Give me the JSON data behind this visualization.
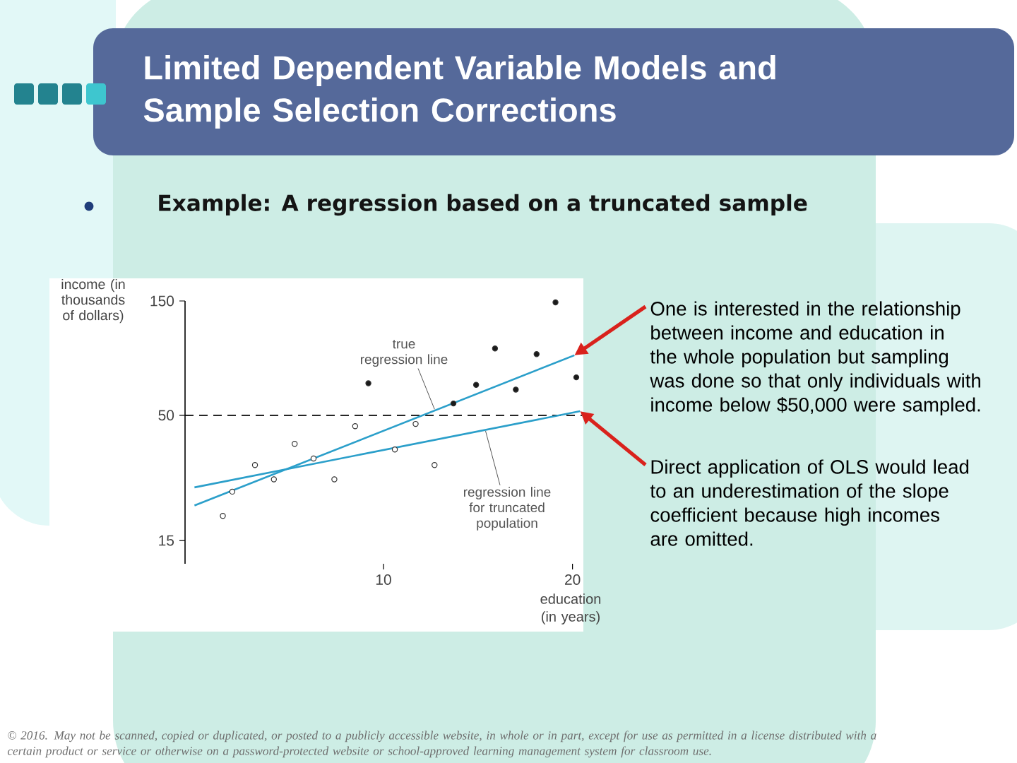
{
  "chart_data": {
    "type": "scatter",
    "title": "Limited Dependent Variable Models and Sample Selection Corrections",
    "subtitle": "Example: A regression based on a truncated sample",
    "xlabel": "education (in years)",
    "ylabel": "income (in thousands of dollars)",
    "xlim": [
      -0.5,
      20.5
    ],
    "ylim": [
      12,
      150
    ],
    "xticks": [
      10,
      20
    ],
    "yticks": [
      15,
      50,
      150
    ],
    "log": "y",
    "marker": "circle",
    "series": [
      {
        "type": "line",
        "color": "#2b9fca",
        "marker": "none",
        "x": [
          0,
          20.1
        ],
        "values": [
          21,
          89
        ]
      },
      {
        "type": "line",
        "color": "#2b9fca",
        "marker": "none",
        "x": [
          0,
          20.4
        ],
        "values": [
          25,
          52
        ]
      },
      {
        "color": "#ffffff",
        "x": [
          1.5,
          2,
          3.2,
          4.2,
          5.3,
          6.3,
          7.4,
          8.5,
          10.6,
          11.7,
          12.7
        ],
        "values": [
          19,
          24,
          31,
          27,
          38,
          33,
          27,
          45,
          36,
          46,
          31
        ]
      },
      {
        "color": "#1a1a1a",
        "x": [
          9.2,
          13.7,
          14.9,
          15.9,
          17,
          18.1,
          19.1,
          20.2
        ],
        "values": [
          68,
          56,
          67,
          95,
          64,
          90,
          148,
          72
        ]
      }
    ],
    "ref_lines": [
      {
        "axis": "y",
        "value": 50,
        "line_style": "dashed",
        "color": "#000000"
      }
    ],
    "annotations": [
      {
        "text": "true regression line",
        "x": 12.7,
        "y": 53
      },
      {
        "text": "regression line for truncated population",
        "x": 15.4,
        "y": 43
      },
      {
        "text": "One is interested in the relationship between income and education in the whole population but sampling was done so that only individuals with income below $50,000 were sampled.",
        "x": 20.1,
        "y": 89
      },
      {
        "text": "Direct application of OLS would lead to an underestimation of the slope coefficient because high incomes are omitted.",
        "x": 20.4,
        "y": 52
      },
      "© 2016. May not be scanned, copied or duplicated, or posted to a publicly accessible website, in whole or in part, except for use as permitted in a license distributed with a certain product or service or otherwise on a password-protected website or school-approved learning management system for classroom use."
    ]
  }
}
